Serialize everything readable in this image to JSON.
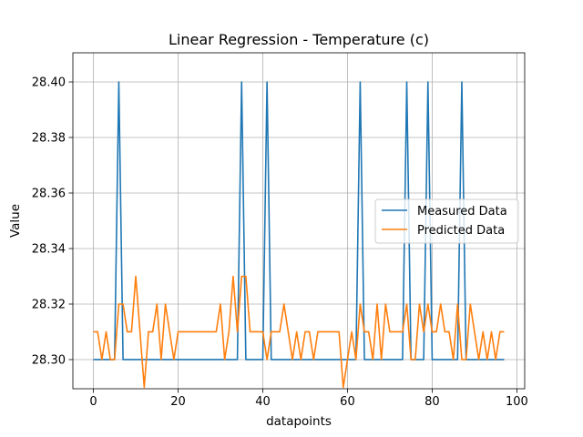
{
  "chart_data": {
    "type": "line",
    "title": "Linear Regression - Temperature (c)",
    "xlabel": "datapoints",
    "ylabel": "Value",
    "xlim": [
      -4.85,
      101.85
    ],
    "ylim": [
      28.2895,
      28.4105
    ],
    "xticks": [
      0,
      20,
      40,
      60,
      80,
      100
    ],
    "xtick_labels": [
      "0",
      "20",
      "40",
      "60",
      "80",
      "100"
    ],
    "yticks": [
      28.3,
      28.32,
      28.34,
      28.36,
      28.38,
      28.4
    ],
    "ytick_labels": [
      "28.30",
      "28.32",
      "28.34",
      "28.36",
      "28.38",
      "28.40"
    ],
    "grid": true,
    "legend_position": "center-right",
    "series": [
      {
        "name": "Measured Data",
        "color": "#1f77b4",
        "x": [
          0,
          1,
          2,
          3,
          4,
          5,
          6,
          7,
          8,
          9,
          10,
          11,
          12,
          13,
          14,
          15,
          16,
          17,
          18,
          19,
          20,
          21,
          22,
          23,
          24,
          25,
          26,
          27,
          28,
          29,
          30,
          31,
          32,
          33,
          34,
          35,
          36,
          37,
          38,
          39,
          40,
          41,
          42,
          43,
          44,
          45,
          46,
          47,
          48,
          49,
          50,
          51,
          52,
          53,
          54,
          55,
          56,
          57,
          58,
          59,
          60,
          61,
          62,
          63,
          64,
          65,
          66,
          67,
          68,
          69,
          70,
          71,
          72,
          73,
          74,
          75,
          76,
          77,
          78,
          79,
          80,
          81,
          82,
          83,
          84,
          85,
          86,
          87,
          88,
          89,
          90,
          91,
          92,
          93,
          94,
          95,
          96,
          97
        ],
        "values": [
          28.3,
          28.3,
          28.3,
          28.3,
          28.3,
          28.3,
          28.4,
          28.3,
          28.3,
          28.3,
          28.3,
          28.3,
          28.3,
          28.3,
          28.3,
          28.3,
          28.3,
          28.3,
          28.3,
          28.3,
          28.3,
          28.3,
          28.3,
          28.3,
          28.3,
          28.3,
          28.3,
          28.3,
          28.3,
          28.3,
          28.3,
          28.3,
          28.3,
          28.3,
          28.3,
          28.4,
          28.3,
          28.3,
          28.3,
          28.3,
          28.3,
          28.4,
          28.3,
          28.3,
          28.3,
          28.3,
          28.3,
          28.3,
          28.3,
          28.3,
          28.3,
          28.3,
          28.3,
          28.3,
          28.3,
          28.3,
          28.3,
          28.3,
          28.3,
          28.3,
          28.3,
          28.3,
          28.3,
          28.4,
          28.3,
          28.3,
          28.3,
          28.3,
          28.3,
          28.3,
          28.3,
          28.3,
          28.3,
          28.3,
          28.4,
          28.3,
          28.3,
          28.3,
          28.3,
          28.4,
          28.3,
          28.3,
          28.3,
          28.3,
          28.3,
          28.3,
          28.3,
          28.4,
          28.3,
          28.3,
          28.3,
          28.3,
          28.3,
          28.3,
          28.3,
          28.3,
          28.3,
          28.3
        ]
      },
      {
        "name": "Predicted Data",
        "color": "#ff7f0e",
        "x": [
          0,
          1,
          2,
          3,
          4,
          5,
          6,
          7,
          8,
          9,
          10,
          11,
          12,
          13,
          14,
          15,
          16,
          17,
          18,
          19,
          20,
          21,
          22,
          23,
          24,
          25,
          26,
          27,
          28,
          29,
          30,
          31,
          32,
          33,
          34,
          35,
          36,
          37,
          38,
          39,
          40,
          41,
          42,
          43,
          44,
          45,
          46,
          47,
          48,
          49,
          50,
          51,
          52,
          53,
          54,
          55,
          56,
          57,
          58,
          59,
          60,
          61,
          62,
          63,
          64,
          65,
          66,
          67,
          68,
          69,
          70,
          71,
          72,
          73,
          74,
          75,
          76,
          77,
          78,
          79,
          80,
          81,
          82,
          83,
          84,
          85,
          86,
          87,
          88,
          89,
          90,
          91,
          92,
          93,
          94,
          95,
          96,
          97
        ],
        "values": [
          28.31,
          28.31,
          28.3,
          28.31,
          28.3,
          28.3,
          28.32,
          28.32,
          28.31,
          28.31,
          28.33,
          28.31,
          28.29,
          28.31,
          28.31,
          28.32,
          28.3,
          28.32,
          28.31,
          28.3,
          28.31,
          28.31,
          28.31,
          28.31,
          28.31,
          28.31,
          28.31,
          28.31,
          28.31,
          28.31,
          28.32,
          28.3,
          28.31,
          28.33,
          28.31,
          28.33,
          28.33,
          28.31,
          28.31,
          28.31,
          28.31,
          28.3,
          28.31,
          28.31,
          28.31,
          28.32,
          28.31,
          28.3,
          28.31,
          28.3,
          28.31,
          28.31,
          28.3,
          28.31,
          28.31,
          28.31,
          28.31,
          28.31,
          28.31,
          28.29,
          28.3,
          28.31,
          28.3,
          28.32,
          28.31,
          28.31,
          28.3,
          28.32,
          28.3,
          28.32,
          28.31,
          28.31,
          28.31,
          28.31,
          28.32,
          28.3,
          28.3,
          28.32,
          28.31,
          28.32,
          28.31,
          28.31,
          28.32,
          28.31,
          28.31,
          28.3,
          28.32,
          28.3,
          28.3,
          28.32,
          28.31,
          28.3,
          28.31,
          28.3,
          28.31,
          28.3,
          28.31,
          28.31
        ]
      }
    ]
  }
}
